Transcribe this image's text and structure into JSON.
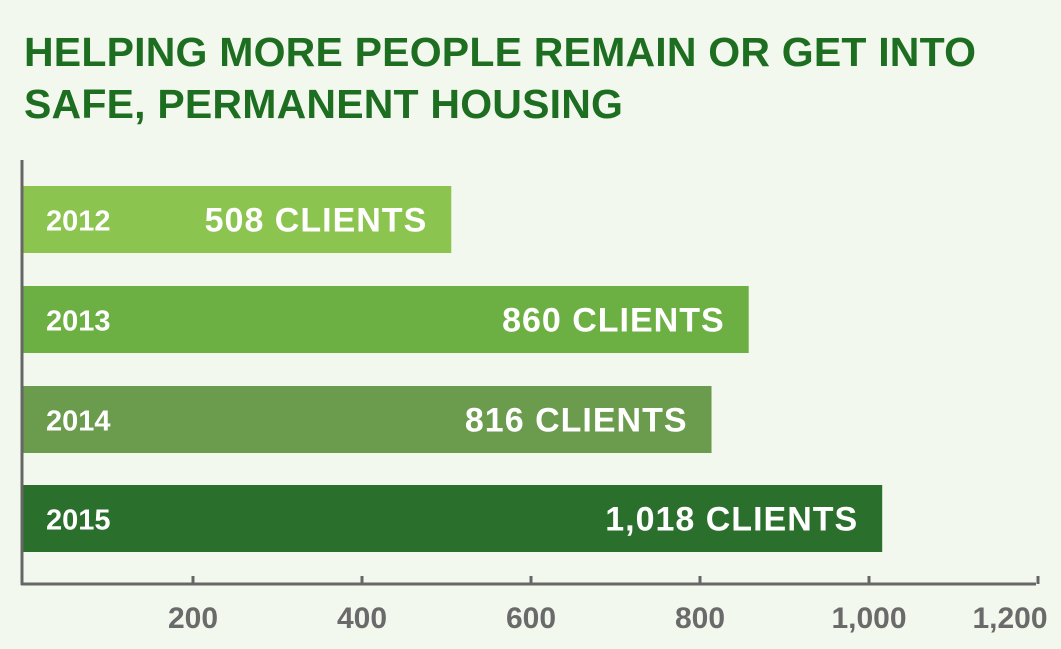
{
  "chart_data": {
    "type": "bar",
    "orientation": "horizontal",
    "title": "HELPING MORE PEOPLE REMAIN OR GET INTO SAFE, PERMANENT HOUSING",
    "categories": [
      "2012",
      "2013",
      "2014",
      "2015"
    ],
    "values": [
      508,
      860,
      816,
      1018
    ],
    "data_labels": [
      "508 CLIENTS",
      "860 CLIENTS",
      "816 CLIENTS",
      "1,018 CLIENTS"
    ],
    "bar_colors": [
      "#8cc450",
      "#6cb043",
      "#6b9b4c",
      "#2a6f2b"
    ],
    "xlim": [
      0,
      1200
    ],
    "xticks": [
      200,
      400,
      600,
      800,
      1000,
      1200
    ],
    "xtick_labels": [
      "200",
      "400",
      "600",
      "800",
      "1,000",
      "1,200"
    ],
    "grid": false,
    "colors": {
      "title": "#1e6e22",
      "axis": "#666666",
      "tick_text": "#6a6a6a",
      "background": "#f3f8ee"
    }
  }
}
